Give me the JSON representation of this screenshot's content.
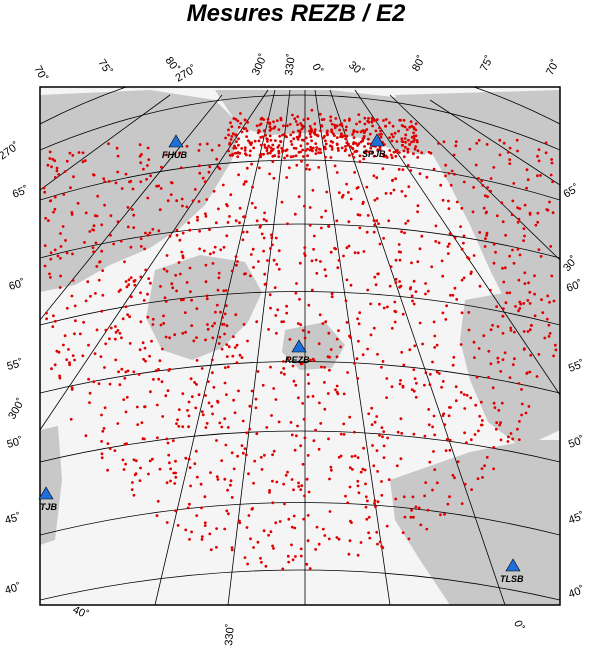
{
  "title": "Mesures REZB / E2",
  "colors": {
    "land": "#c8c8c8",
    "sea": "#f5f5f5",
    "points": "#e00000",
    "station": "#1e6fd9"
  },
  "grid_labels": {
    "top_lat": [
      "70˚",
      "75˚",
      "80˚",
      "80˚",
      "75˚",
      "70˚"
    ],
    "top_lon": [
      "270˚",
      "300˚",
      "330˚",
      "0˚",
      "30˚"
    ],
    "left": [
      "270˚",
      "65˚",
      "60˚",
      "55˚",
      "300˚",
      "50˚",
      "45˚",
      "40˚",
      "40˚"
    ],
    "right": [
      "65˚",
      "30˚",
      "60˚",
      "55˚",
      "50˚",
      "45˚",
      "40˚"
    ],
    "bottom": [
      "330˚",
      "0˚"
    ]
  },
  "stations": [
    {
      "code": "FHUB"
    },
    {
      "code": "SPJB"
    },
    {
      "code": "REZB"
    },
    {
      "code": "TJB"
    },
    {
      "code": "TLSB"
    }
  ]
}
